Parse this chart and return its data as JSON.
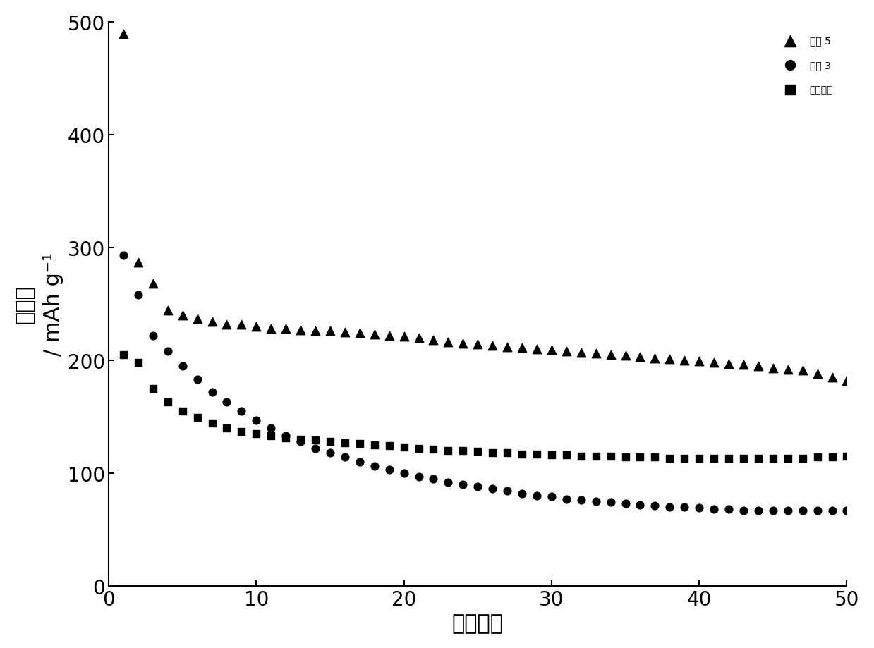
{
  "xlabel": "循环次数",
  "ylabel_line1": "比容量",
  "ylabel_line2": "/ mAh g⁻¹",
  "xlim": [
    0,
    50
  ],
  "ylim": [
    0,
    500
  ],
  "xticks": [
    0,
    10,
    20,
    30,
    40,
    50
  ],
  "yticks": [
    0,
    100,
    200,
    300,
    400,
    500
  ],
  "background_color": "#ffffff",
  "sample5_x": [
    1,
    2,
    3,
    4,
    5,
    6,
    7,
    8,
    9,
    10,
    11,
    12,
    13,
    14,
    15,
    16,
    17,
    18,
    19,
    20,
    21,
    22,
    23,
    24,
    25,
    26,
    27,
    28,
    29,
    30,
    31,
    32,
    33,
    34,
    35,
    36,
    37,
    38,
    39,
    40,
    41,
    42,
    43,
    44,
    45,
    46,
    47,
    48,
    49,
    50
  ],
  "sample5_y": [
    489,
    287,
    268,
    244,
    240,
    237,
    234,
    232,
    232,
    230,
    228,
    228,
    227,
    226,
    226,
    225,
    224,
    223,
    222,
    221,
    220,
    218,
    216,
    215,
    214,
    213,
    212,
    211,
    210,
    209,
    208,
    207,
    206,
    205,
    204,
    203,
    202,
    201,
    200,
    199,
    198,
    197,
    196,
    195,
    193,
    192,
    191,
    188,
    185,
    182
  ],
  "sample3_x": [
    1,
    2,
    3,
    4,
    5,
    6,
    7,
    8,
    9,
    10,
    11,
    12,
    13,
    14,
    15,
    16,
    17,
    18,
    19,
    20,
    21,
    22,
    23,
    24,
    25,
    26,
    27,
    28,
    29,
    30,
    31,
    32,
    33,
    34,
    35,
    36,
    37,
    38,
    39,
    40,
    41,
    42,
    43,
    44,
    45,
    46,
    47,
    48,
    49,
    50
  ],
  "sample3_y": [
    293,
    258,
    222,
    208,
    195,
    183,
    172,
    163,
    155,
    147,
    140,
    133,
    128,
    122,
    118,
    114,
    110,
    106,
    103,
    100,
    97,
    95,
    92,
    90,
    88,
    86,
    84,
    82,
    80,
    79,
    77,
    76,
    75,
    74,
    73,
    72,
    71,
    70,
    70,
    69,
    68,
    68,
    67,
    67,
    67,
    67,
    67,
    67,
    67,
    67
  ],
  "control_x": [
    1,
    2,
    3,
    4,
    5,
    6,
    7,
    8,
    9,
    10,
    11,
    12,
    13,
    14,
    15,
    16,
    17,
    18,
    19,
    20,
    21,
    22,
    23,
    24,
    25,
    26,
    27,
    28,
    29,
    30,
    31,
    32,
    33,
    34,
    35,
    36,
    37,
    38,
    39,
    40,
    41,
    42,
    43,
    44,
    45,
    46,
    47,
    48,
    49,
    50
  ],
  "control_y": [
    205,
    198,
    175,
    163,
    155,
    149,
    144,
    140,
    137,
    135,
    133,
    131,
    130,
    129,
    128,
    127,
    126,
    125,
    124,
    123,
    122,
    121,
    120,
    120,
    119,
    118,
    118,
    117,
    117,
    116,
    116,
    115,
    115,
    115,
    114,
    114,
    114,
    113,
    113,
    113,
    113,
    113,
    113,
    113,
    113,
    113,
    113,
    114,
    114,
    115
  ],
  "legend_labels": [
    "样品 5",
    "样品 3",
    "对比样品"
  ],
  "marker_color": "#000000",
  "marker_size_tri": 80,
  "marker_size_circle": 60,
  "marker_size_square": 55,
  "fontsize_label": 22,
  "fontsize_tick": 20,
  "fontsize_legend": 20
}
